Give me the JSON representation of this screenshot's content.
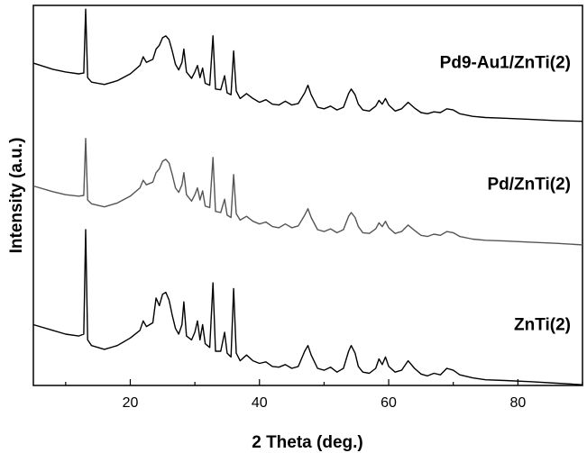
{
  "chart_data": {
    "type": "line",
    "title": "",
    "xlabel": "2 Theta (deg.)",
    "ylabel": "Intensity (a.u.)",
    "xlim": [
      5,
      90
    ],
    "ylim": [
      0,
      100
    ],
    "xticks": [
      20,
      40,
      60,
      80
    ],
    "y_tick_labels": false,
    "grid": false,
    "legend": "none",
    "labels_placement": "right, above each curve",
    "series": [
      {
        "name": "Pd9-Au1/ZnTi(2)",
        "color": "#000000",
        "baseline": 70,
        "points": [
          [
            5,
            14.8
          ],
          [
            8,
            13.2
          ],
          [
            10,
            12.5
          ],
          [
            12,
            12.0
          ],
          [
            12.8,
            12.2
          ],
          [
            13.1,
            29.0
          ],
          [
            13.4,
            11.0
          ],
          [
            14,
            9.8
          ],
          [
            16,
            9.2
          ],
          [
            18,
            10.2
          ],
          [
            20,
            12.0
          ],
          [
            21.5,
            14.2
          ],
          [
            22,
            16.5
          ],
          [
            22.5,
            15.0
          ],
          [
            23.5,
            15.8
          ],
          [
            24,
            18.5
          ],
          [
            24.5,
            19.5
          ],
          [
            25,
            21.5
          ],
          [
            25.5,
            22.0
          ],
          [
            26,
            21.0
          ],
          [
            26.5,
            18.0
          ],
          [
            27,
            14.5
          ],
          [
            27.5,
            13.0
          ],
          [
            28,
            15.0
          ],
          [
            28.3,
            18.5
          ],
          [
            28.7,
            12.5
          ],
          [
            29.5,
            10.8
          ],
          [
            30,
            12.5
          ],
          [
            30.4,
            14.2
          ],
          [
            30.8,
            11.0
          ],
          [
            31.2,
            13.5
          ],
          [
            31.6,
            9.5
          ],
          [
            32.3,
            9.0
          ],
          [
            32.8,
            22.0
          ],
          [
            33.2,
            8.0
          ],
          [
            34,
            7.8
          ],
          [
            34.6,
            11.5
          ],
          [
            35,
            7.0
          ],
          [
            35.6,
            6.5
          ],
          [
            36,
            18.0
          ],
          [
            36.4,
            7.5
          ],
          [
            37,
            5.5
          ],
          [
            38,
            6.8
          ],
          [
            39,
            5.5
          ],
          [
            40,
            4.5
          ],
          [
            41,
            5.2
          ],
          [
            42,
            4.0
          ],
          [
            43,
            3.8
          ],
          [
            44,
            4.8
          ],
          [
            45,
            3.8
          ],
          [
            46,
            4.2
          ],
          [
            47,
            7.0
          ],
          [
            47.5,
            9.0
          ],
          [
            48,
            6.5
          ],
          [
            49,
            3.2
          ],
          [
            50,
            2.8
          ],
          [
            51,
            3.5
          ],
          [
            52,
            2.5
          ],
          [
            53,
            3.2
          ],
          [
            53.8,
            6.8
          ],
          [
            54.2,
            8.0
          ],
          [
            54.8,
            6.5
          ],
          [
            55.3,
            4.0
          ],
          [
            56,
            2.5
          ],
          [
            57,
            2.2
          ],
          [
            58,
            3.5
          ],
          [
            58.5,
            5.0
          ],
          [
            59,
            4.0
          ],
          [
            59.5,
            5.5
          ],
          [
            60,
            3.8
          ],
          [
            61,
            2.2
          ],
          [
            62,
            2.8
          ],
          [
            63,
            4.5
          ],
          [
            64,
            3.0
          ],
          [
            65,
            1.8
          ],
          [
            66,
            1.5
          ],
          [
            67,
            2.0
          ],
          [
            68,
            1.8
          ],
          [
            69,
            2.8
          ],
          [
            70,
            2.5
          ],
          [
            71,
            1.5
          ],
          [
            73,
            0.8
          ],
          [
            75,
            0.5
          ],
          [
            78,
            0.3
          ],
          [
            82,
            0.0
          ],
          [
            86,
            -0.3
          ],
          [
            90,
            -0.5
          ]
        ]
      },
      {
        "name": "Pd/ZnTi(2)",
        "color": "#555555",
        "baseline": 38,
        "points": [
          [
            5,
            14.5
          ],
          [
            8,
            13.0
          ],
          [
            10,
            12.2
          ],
          [
            12,
            11.8
          ],
          [
            12.8,
            12.0
          ],
          [
            13.1,
            27.0
          ],
          [
            13.4,
            10.8
          ],
          [
            14,
            9.8
          ],
          [
            16,
            9.0
          ],
          [
            18,
            10.0
          ],
          [
            20,
            11.8
          ],
          [
            21.5,
            14.0
          ],
          [
            22,
            16.0
          ],
          [
            22.5,
            14.8
          ],
          [
            23.5,
            15.5
          ],
          [
            24,
            18.0
          ],
          [
            24.5,
            19.0
          ],
          [
            25,
            21.0
          ],
          [
            25.5,
            21.5
          ],
          [
            26,
            20.5
          ],
          [
            26.5,
            17.5
          ],
          [
            27,
            14.0
          ],
          [
            27.5,
            12.8
          ],
          [
            28,
            14.8
          ],
          [
            28.3,
            18.0
          ],
          [
            28.7,
            12.2
          ],
          [
            29.5,
            10.5
          ],
          [
            30,
            12.2
          ],
          [
            30.4,
            14.0
          ],
          [
            30.8,
            10.8
          ],
          [
            31.2,
            13.2
          ],
          [
            31.6,
            9.2
          ],
          [
            32.3,
            8.8
          ],
          [
            32.8,
            22.0
          ],
          [
            33.2,
            7.8
          ],
          [
            34,
            7.5
          ],
          [
            34.6,
            11.0
          ],
          [
            35,
            6.8
          ],
          [
            35.6,
            6.2
          ],
          [
            36,
            17.5
          ],
          [
            36.4,
            7.2
          ],
          [
            37,
            5.5
          ],
          [
            38,
            6.5
          ],
          [
            39,
            5.2
          ],
          [
            40,
            4.5
          ],
          [
            41,
            5.0
          ],
          [
            42,
            3.8
          ],
          [
            43,
            3.5
          ],
          [
            44,
            4.5
          ],
          [
            45,
            3.5
          ],
          [
            46,
            4.0
          ],
          [
            47,
            6.8
          ],
          [
            47.5,
            8.5
          ],
          [
            48,
            6.2
          ],
          [
            49,
            3.0
          ],
          [
            50,
            2.5
          ],
          [
            51,
            3.2
          ],
          [
            52,
            2.2
          ],
          [
            53,
            3.0
          ],
          [
            53.8,
            6.5
          ],
          [
            54.2,
            7.5
          ],
          [
            54.8,
            6.2
          ],
          [
            55.3,
            3.8
          ],
          [
            56,
            2.2
          ],
          [
            57,
            2.0
          ],
          [
            58,
            3.2
          ],
          [
            58.5,
            4.8
          ],
          [
            59,
            3.8
          ],
          [
            59.5,
            5.2
          ],
          [
            60,
            3.5
          ],
          [
            61,
            2.0
          ],
          [
            62,
            2.5
          ],
          [
            63,
            4.2
          ],
          [
            64,
            2.8
          ],
          [
            65,
            1.5
          ],
          [
            66,
            1.2
          ],
          [
            67,
            1.8
          ],
          [
            68,
            1.5
          ],
          [
            69,
            2.5
          ],
          [
            70,
            2.2
          ],
          [
            71,
            1.2
          ],
          [
            73,
            0.5
          ],
          [
            75,
            0.2
          ],
          [
            78,
            0.0
          ],
          [
            82,
            -0.3
          ],
          [
            86,
            -0.6
          ],
          [
            90,
            -1.0
          ]
        ]
      },
      {
        "name": "ZnTi(2)",
        "color": "#000000",
        "baseline": 1,
        "points": [
          [
            5,
            15.0
          ],
          [
            8,
            13.5
          ],
          [
            10,
            12.5
          ],
          [
            12,
            12.0
          ],
          [
            12.8,
            12.5
          ],
          [
            13.1,
            40.0
          ],
          [
            13.4,
            11.0
          ],
          [
            14,
            9.5
          ],
          [
            16,
            8.5
          ],
          [
            18,
            9.5
          ],
          [
            20,
            11.5
          ],
          [
            21.5,
            13.5
          ],
          [
            22,
            16.0
          ],
          [
            22.5,
            14.5
          ],
          [
            23.5,
            15.5
          ],
          [
            24,
            22.0
          ],
          [
            24.5,
            20.0
          ],
          [
            25,
            23.0
          ],
          [
            25.5,
            23.5
          ],
          [
            26,
            21.5
          ],
          [
            26.5,
            17.5
          ],
          [
            27,
            14.0
          ],
          [
            27.5,
            12.5
          ],
          [
            28,
            15.0
          ],
          [
            28.3,
            21.0
          ],
          [
            28.7,
            12.0
          ],
          [
            29.5,
            11.0
          ],
          [
            30,
            13.0
          ],
          [
            30.4,
            16.0
          ],
          [
            30.8,
            11.0
          ],
          [
            31.2,
            15.0
          ],
          [
            31.6,
            10.0
          ],
          [
            32.3,
            9.0
          ],
          [
            32.8,
            26.0
          ],
          [
            33.2,
            8.0
          ],
          [
            34,
            8.0
          ],
          [
            34.6,
            13.0
          ],
          [
            35,
            7.5
          ],
          [
            35.6,
            6.5
          ],
          [
            36,
            24.5
          ],
          [
            36.4,
            7.5
          ],
          [
            37,
            5.5
          ],
          [
            38,
            7.0
          ],
          [
            39,
            5.5
          ],
          [
            40,
            4.8
          ],
          [
            41,
            5.2
          ],
          [
            42,
            4.0
          ],
          [
            43,
            3.8
          ],
          [
            44,
            4.5
          ],
          [
            45,
            3.5
          ],
          [
            46,
            4.0
          ],
          [
            47,
            8.0
          ],
          [
            47.5,
            9.5
          ],
          [
            48,
            7.0
          ],
          [
            49,
            3.5
          ],
          [
            50,
            3.0
          ],
          [
            51,
            3.8
          ],
          [
            52,
            2.5
          ],
          [
            53,
            3.5
          ],
          [
            53.8,
            8.0
          ],
          [
            54.2,
            9.5
          ],
          [
            54.8,
            7.5
          ],
          [
            55.3,
            4.0
          ],
          [
            56,
            2.5
          ],
          [
            57,
            2.2
          ],
          [
            58,
            3.5
          ],
          [
            58.5,
            6.0
          ],
          [
            59,
            4.5
          ],
          [
            59.5,
            6.5
          ],
          [
            60,
            4.0
          ],
          [
            61,
            2.5
          ],
          [
            62,
            3.0
          ],
          [
            63,
            5.5
          ],
          [
            64,
            3.5
          ],
          [
            65,
            2.0
          ],
          [
            66,
            1.5
          ],
          [
            67,
            2.2
          ],
          [
            68,
            1.8
          ],
          [
            69,
            3.5
          ],
          [
            70,
            3.0
          ],
          [
            71,
            1.8
          ],
          [
            73,
            1.0
          ],
          [
            75,
            0.5
          ],
          [
            78,
            0.3
          ],
          [
            82,
            0.0
          ],
          [
            86,
            -0.4
          ],
          [
            90,
            -0.8
          ]
        ]
      }
    ]
  }
}
